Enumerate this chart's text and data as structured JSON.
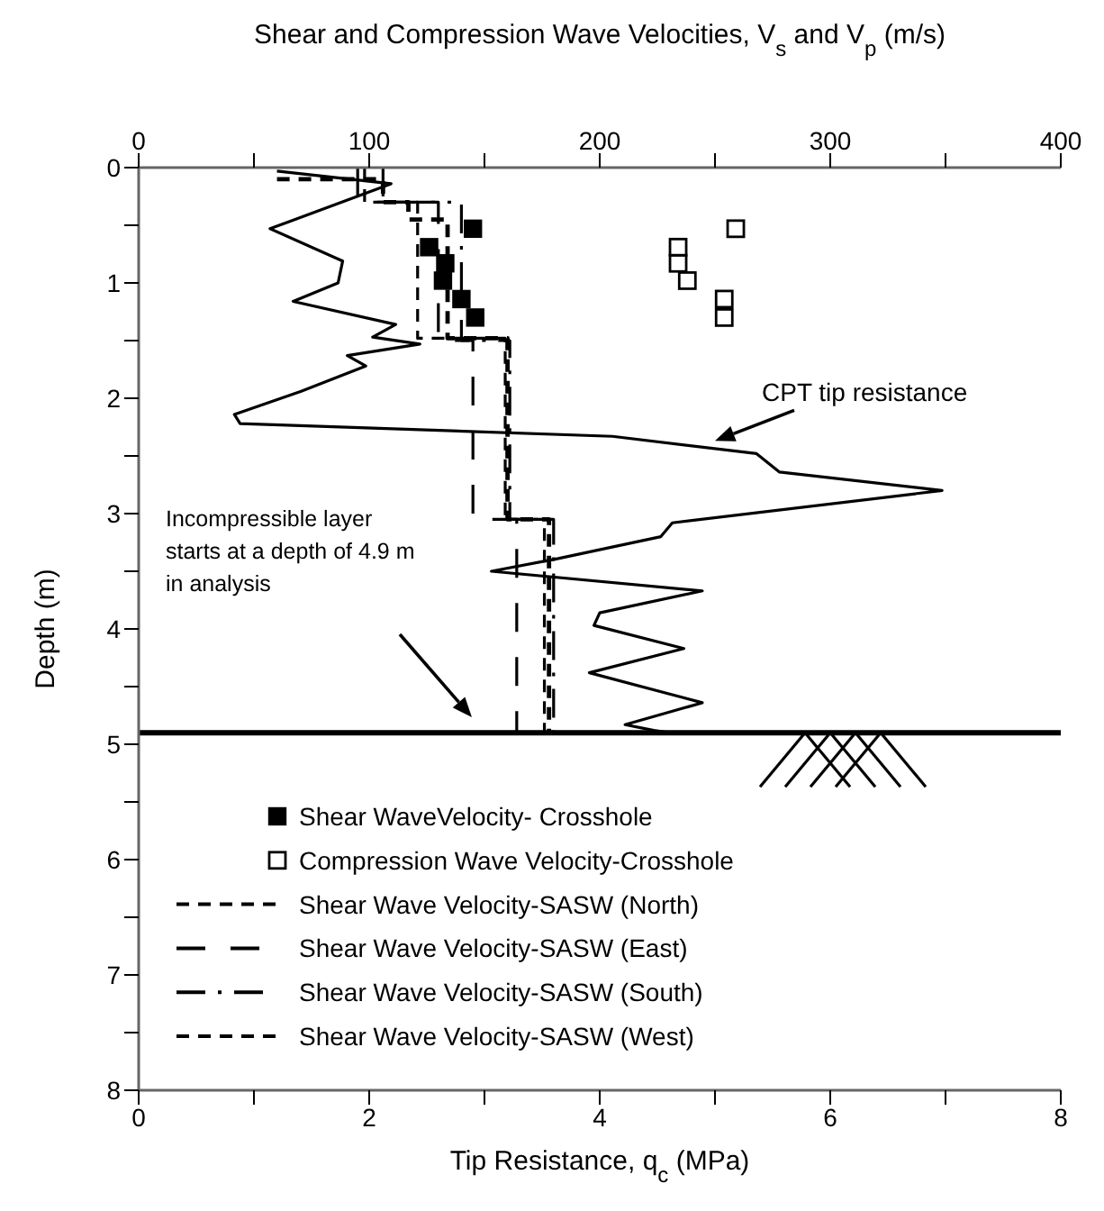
{
  "chart_data": {
    "type": "line",
    "x2label": "Shear and Compression Wave Velocities, V$_{s}$ and V$_{p}$ (m/s)",
    "xlabel": "Tip Resistance, q$_{c}$ (MPa)",
    "ylabel": "Depth (m)",
    "xlim": [
      0,
      8
    ],
    "xticks": [
      0,
      {
        "value": 1,
        "label": null
      },
      2,
      {
        "value": 3,
        "label": null
      },
      4,
      {
        "value": 5,
        "label": null
      },
      6,
      {
        "value": 7,
        "label": null
      },
      8
    ],
    "x2lim": [
      0,
      400
    ],
    "x2ticks": [
      0,
      {
        "value": 50,
        "label": null
      },
      100,
      {
        "value": 150,
        "label": null
      },
      200,
      {
        "value": 250,
        "label": null
      },
      300,
      {
        "value": 350,
        "label": null
      },
      400
    ],
    "ylim": [
      8,
      0
    ],
    "yticks": [
      0,
      {
        "value": 0.5,
        "label": null
      },
      1,
      {
        "value": 1.5,
        "label": null
      },
      2,
      {
        "value": 2.5,
        "label": null
      },
      3,
      {
        "value": 3.5,
        "label": null
      },
      4,
      {
        "value": 4.5,
        "label": null
      },
      5,
      {
        "value": 5.5,
        "label": null
      },
      6,
      {
        "value": 6.5,
        "label": null
      },
      7,
      {
        "value": 7.5,
        "label": null
      },
      8
    ],
    "grid": false,
    "legend": "bottom left",
    "series": [
      {
        "name": "Shear WaveVelocity- Crosshole",
        "type": "scatter",
        "axis": "x2",
        "marker": "square",
        "color": "#000000",
        "x": [
          145,
          126,
          133,
          132,
          140,
          146
        ],
        "values": [
          0.53,
          0.69,
          0.83,
          0.98,
          1.14,
          1.3
        ]
      },
      {
        "name": "Compression Wave Velocity-Crosshole",
        "type": "scatter",
        "axis": "x2",
        "marker": "square_open",
        "color": "#000000",
        "x": [
          259,
          234,
          234,
          238,
          254,
          254
        ],
        "values": [
          0.53,
          0.69,
          0.83,
          0.98,
          1.14,
          1.3
        ]
      },
      {
        "name": "Shear Wave Velocity-SASW (North)",
        "type": "line",
        "axis": "x2",
        "line_style": "dashed",
        "color": "#000000",
        "x": [
          60,
          106,
          106,
          117,
          117,
          134,
          134,
          160,
          160,
          178,
          178
        ],
        "values": [
          0.1,
          0.1,
          0.3,
          0.3,
          0.45,
          0.45,
          1.48,
          1.48,
          3.05,
          3.05,
          4.9
        ]
      },
      {
        "name": "Shear Wave Velocity-SASW (East)",
        "type": "line",
        "axis": "x2",
        "line_style": "longdash",
        "color": "#000000",
        "x": [
          95,
          95,
          130,
          130,
          145,
          145,
          164,
          164
        ],
        "values": [
          0,
          0.3,
          0.3,
          1.5,
          1.5,
          3.05,
          3.05,
          4.9
        ]
      },
      {
        "name": "Shear Wave Velocity-SASW (South)",
        "type": "line",
        "axis": "x2",
        "line_style": "dashdot",
        "color": "#000000",
        "x": [
          106,
          106,
          140,
          140,
          161,
          161,
          180,
          180
        ],
        "values": [
          0,
          0.3,
          0.3,
          1.5,
          1.5,
          3.05,
          3.05,
          4.9
        ]
      },
      {
        "name": "Shear Wave Velocity-SASW (West)",
        "type": "line",
        "axis": "x2",
        "line_style": "dashed",
        "color": "#000000",
        "x": [
          98,
          98,
          121,
          121,
          159,
          159,
          176,
          176
        ],
        "values": [
          0,
          0.3,
          0.3,
          1.48,
          1.48,
          3.05,
          3.05,
          4.9
        ]
      },
      {
        "type": "line",
        "line_style": "solid",
        "color": "#000000",
        "x": [
          1.2,
          2.19,
          1.3,
          1.14,
          1.77,
          1.73,
          1.34,
          2.23,
          2.03,
          2.44,
          1.81,
          1.97,
          1.41,
          0.83,
          0.88,
          4.11,
          5.36,
          5.56,
          6.97,
          4.63,
          4.53,
          3.64,
          3.06,
          4.89,
          4.0,
          3.95,
          4.73,
          3.91,
          4.89,
          4.22,
          4.47,
          4.6
        ],
        "values": [
          0.03,
          0.14,
          0.47,
          0.53,
          0.81,
          1.0,
          1.16,
          1.36,
          1.47,
          1.53,
          1.63,
          1.72,
          1.94,
          2.14,
          2.22,
          2.33,
          2.48,
          2.64,
          2.8,
          3.08,
          3.2,
          3.39,
          3.5,
          3.67,
          3.86,
          3.97,
          4.17,
          4.38,
          4.64,
          4.83,
          4.88,
          4.9
        ]
      }
    ],
    "ref_lines": [
      {
        "axis": "y",
        "value": 4.9,
        "color": "#000000"
      }
    ],
    "annotations": [
      {
        "text": "CPT tip resistance",
        "x": 5.0,
        "y": 2.37
      },
      "Incompressible layer\nstarts at a depth of 4.9 m\nin analysis"
    ]
  }
}
